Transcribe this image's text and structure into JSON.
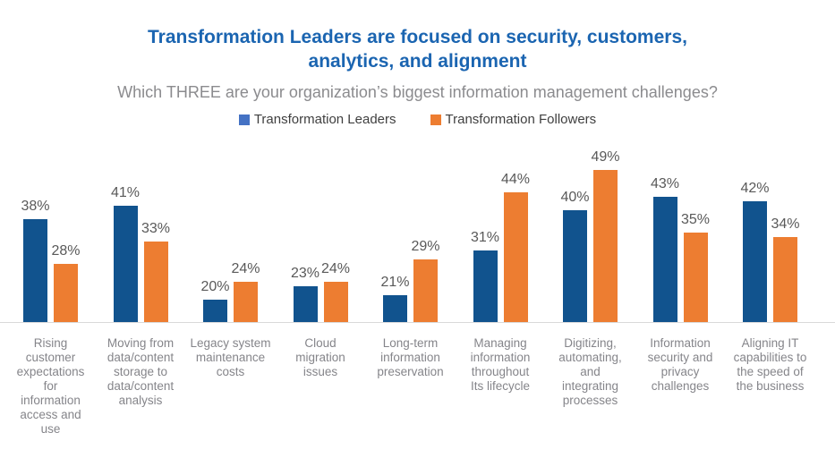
{
  "colors": {
    "title": "#1B65B1",
    "subtitle": "#8B8B8E",
    "leaders_bar": "#11538E",
    "followers_bar": "#ED7D31",
    "leaders_legend_marker": "#4472C4",
    "followers_legend_marker": "#ED7D31",
    "value_label": "#595959",
    "category_label": "#85858A",
    "axis_line": "#D9D9D9",
    "background": "#FFFFFF"
  },
  "legend": {
    "items": [
      {
        "label": "Transformation Leaders",
        "marker_color": "#4472C4"
      },
      {
        "label": "Transformation Followers",
        "marker_color": "#ED7D31"
      }
    ]
  },
  "chart_data": {
    "type": "bar",
    "title": "Transformation Leaders are focused on security, customers, analytics, and alignment",
    "subtitle": "Which THREE are your organization’s biggest information management challenges?",
    "legend_position": "top",
    "grid": false,
    "data_labels": true,
    "value_suffix": "%",
    "ylim": [
      15,
      52
    ],
    "categories": [
      "Rising customer expectations for information access and use",
      "Moving from data/content storage to data/content analysis",
      "Legacy system maintenance costs",
      "Cloud migration issues",
      "Long-term information preservation",
      "Managing information throughout Its lifecycle",
      "Digitizing, automating, and integrating processes",
      "Information security and privacy challenges",
      "Aligning IT capabilities to the speed of the business"
    ],
    "category_labels": [
      "Rising\ncustomer\nexpectations\nfor\ninformation\naccess and\nuse",
      "Moving from\ndata/content\nstorage to\ndata/content\nanalysis",
      "Legacy system\nmaintenance\ncosts",
      "Cloud\nmigration\nissues",
      "Long-term\ninformation\npreservation",
      "Managing\ninformation\nthroughout\nIts lifecycle",
      "Digitizing,\nautomating,\nand\nintegrating\nprocesses",
      "Information\nsecurity and\nprivacy\nchallenges",
      "Aligning IT\ncapabilities to\nthe speed of\nthe business"
    ],
    "series": [
      {
        "name": "Transformation Leaders",
        "color": "#11538E",
        "values": [
          38,
          41,
          20,
          23,
          21,
          31,
          40,
          43,
          42
        ]
      },
      {
        "name": "Transformation Followers",
        "color": "#ED7D31",
        "values": [
          28,
          33,
          24,
          24,
          29,
          44,
          49,
          35,
          34
        ]
      }
    ]
  }
}
